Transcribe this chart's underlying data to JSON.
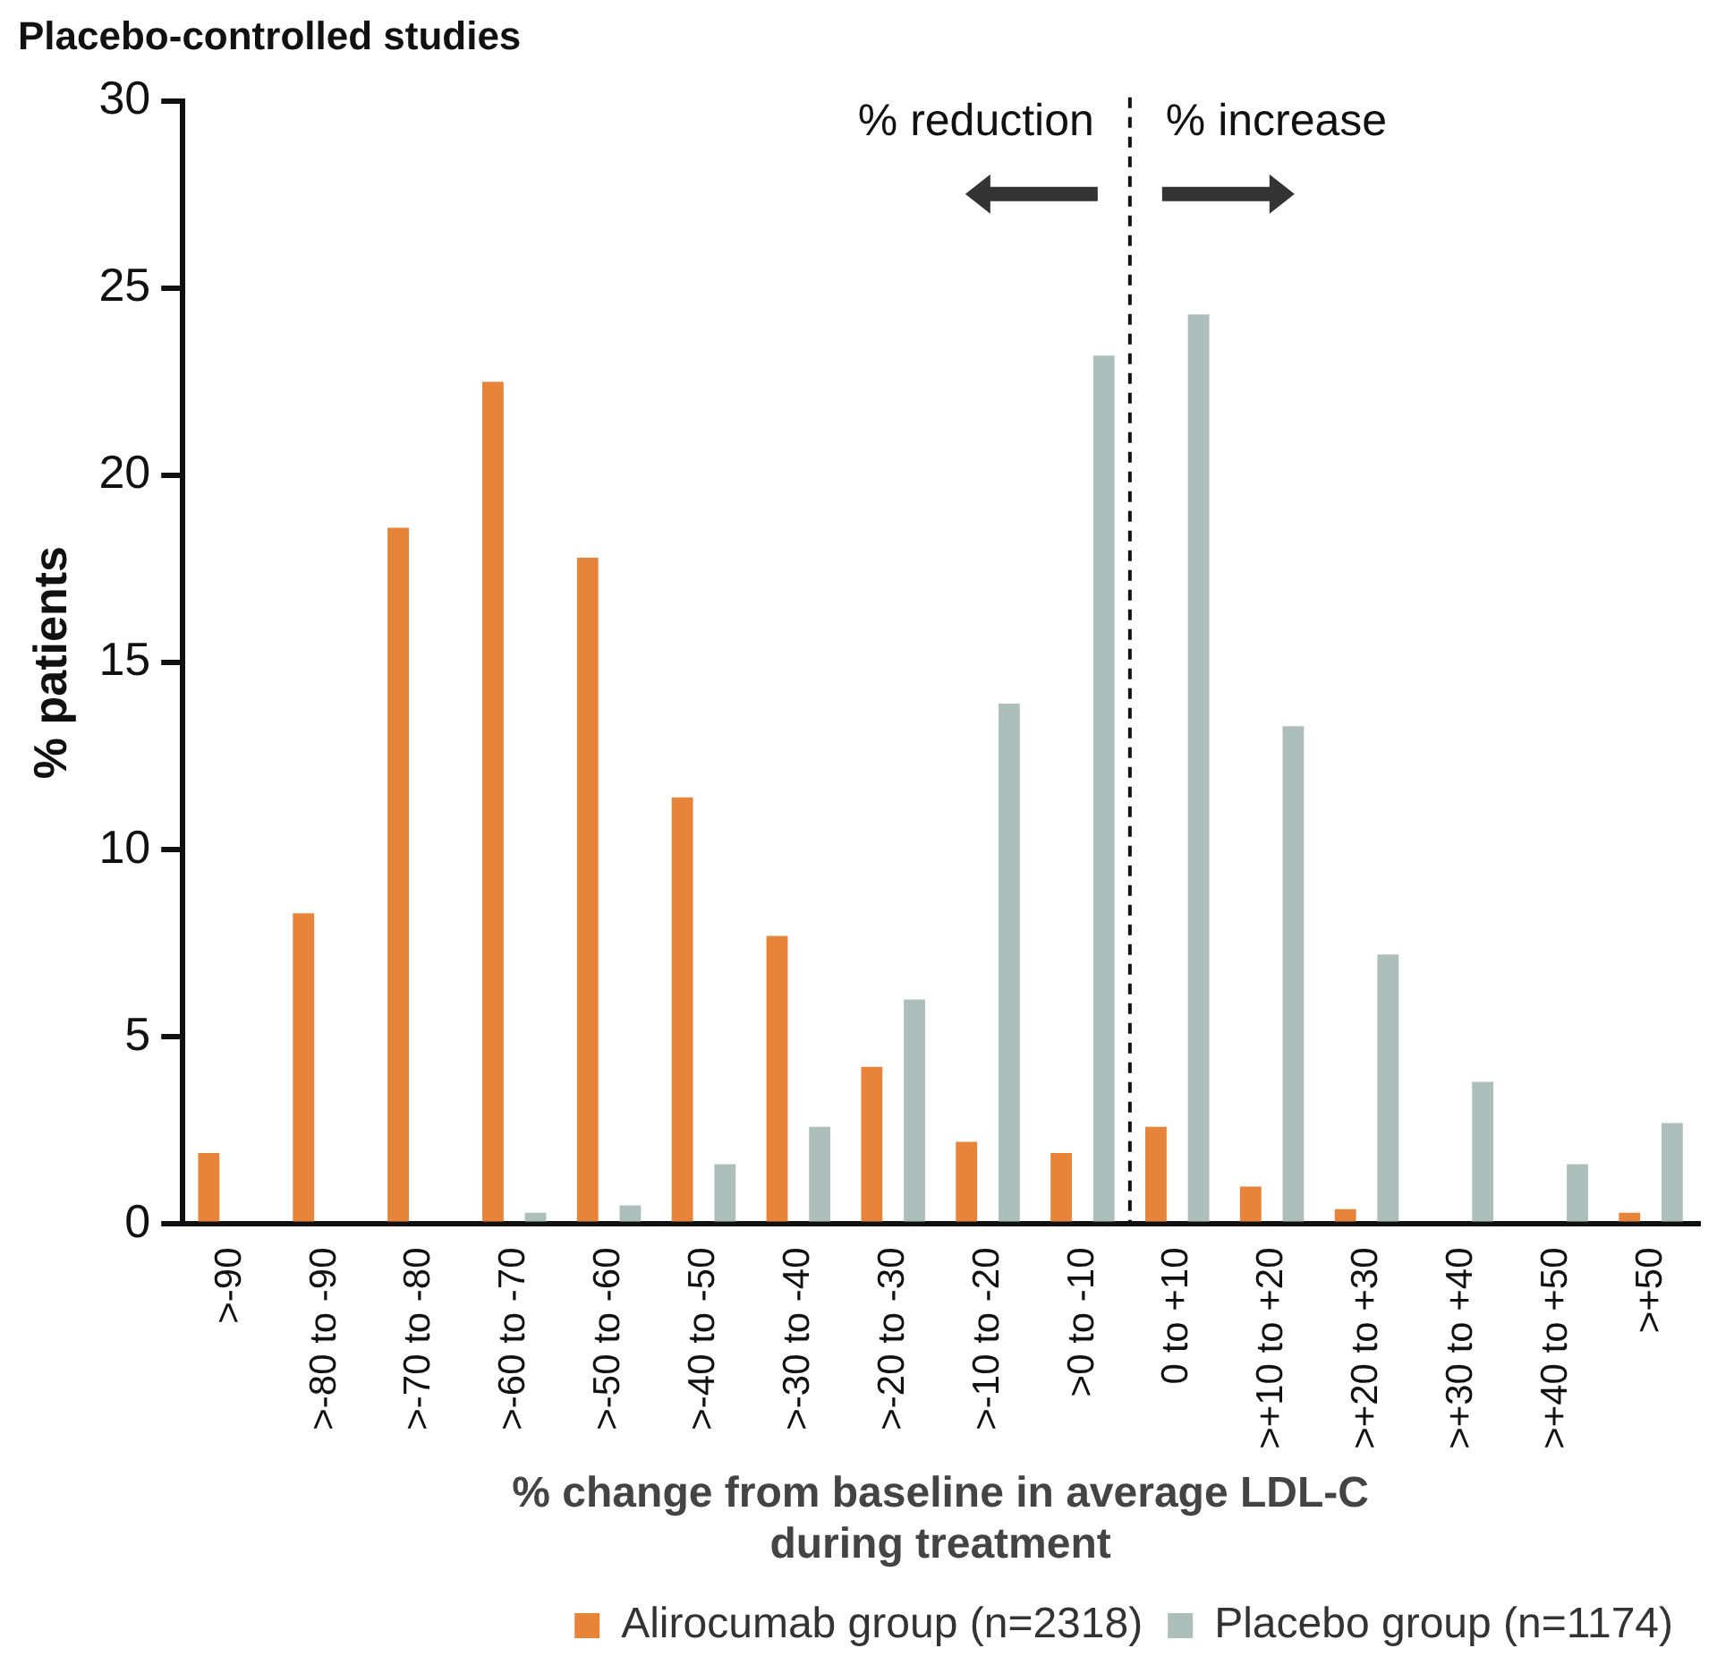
{
  "chart_data": {
    "type": "bar",
    "title": "Placebo-controlled studies",
    "xlabel": "% change from baseline in average LDL-C\nduring treatment",
    "ylabel": "% patients",
    "categories": [
      ">-90",
      ">-80 to -90",
      ">-70 to -80",
      ">-60 to -70",
      ">-50 to -60",
      ">-40 to -50",
      ">-30 to -40",
      ">-20 to -30",
      ">-10 to -20",
      ">0 to -10",
      "0 to +10",
      ">+10 to +20",
      ">+20 to +30",
      ">+30 to +40",
      ">+40 to +50",
      ">+50"
    ],
    "series": [
      {
        "name": "Alirocumab group (n=2318)",
        "color": "#e8843a",
        "values": [
          1.9,
          8.3,
          18.6,
          22.5,
          17.8,
          11.4,
          7.7,
          4.2,
          2.2,
          1.9,
          2.6,
          1.0,
          0.4,
          null,
          null,
          0.3
        ]
      },
      {
        "name": "Placebo group (n=1174)",
        "color": "#adbfba",
        "values": [
          null,
          null,
          null,
          0.3,
          0.5,
          1.6,
          2.6,
          6.0,
          13.9,
          23.2,
          24.3,
          13.3,
          7.2,
          3.8,
          1.6,
          2.7
        ]
      }
    ],
    "ylim": [
      0,
      30
    ],
    "yticks": [
      0,
      5,
      10,
      15,
      20,
      25,
      30
    ],
    "grid": false,
    "legend": "bottom",
    "annotations": [
      "% reduction",
      "% increase"
    ]
  }
}
